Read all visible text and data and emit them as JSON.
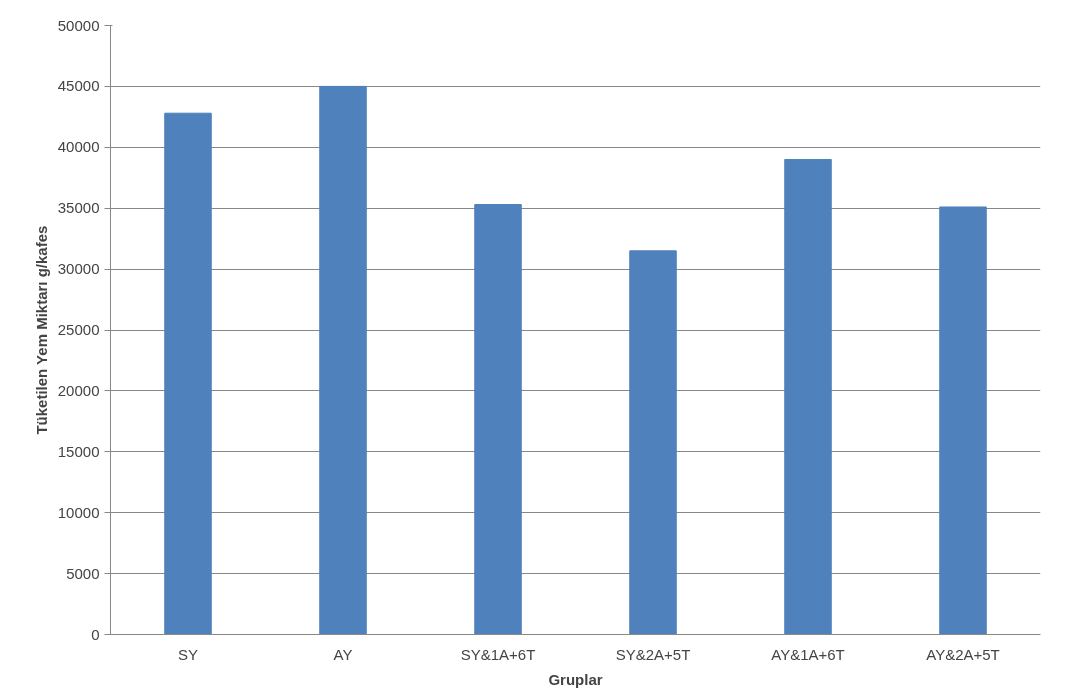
{
  "chart_data": {
    "type": "bar",
    "xlabel": "Gruplar",
    "ylabel": "Tüketilen Yem Miktarı g/kafes",
    "categories": [
      "SY",
      "AY",
      "SY&1A+6T",
      "SY&2A+5T",
      "AY&1A+6T",
      "AY&2A+5T"
    ],
    "values": [
      42800,
      45000,
      35300,
      31500,
      39000,
      35100
    ],
    "color": "#4f81bd",
    "ylim": [
      0,
      50000
    ],
    "yticks": [
      0,
      5000,
      10000,
      15000,
      20000,
      25000,
      30000,
      35000,
      40000,
      45000,
      50000
    ],
    "grid": "y"
  }
}
